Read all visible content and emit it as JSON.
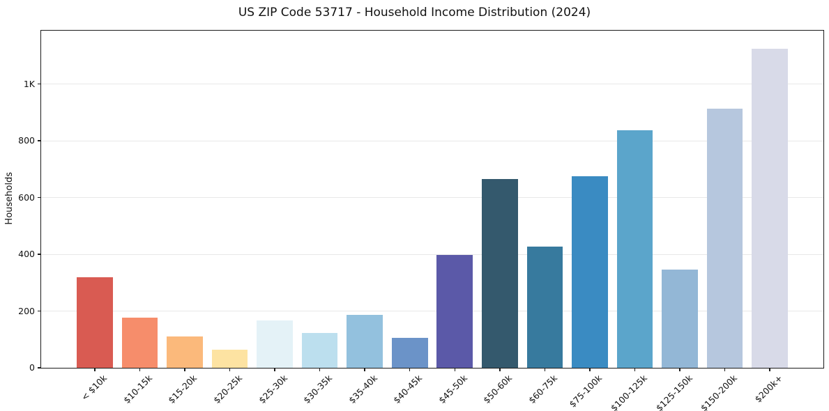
{
  "chart_data": {
    "type": "bar",
    "title": "US ZIP Code 53717 - Household Income Distribution (2024)",
    "xlabel": "",
    "ylabel": "Households",
    "categories": [
      "< $10k",
      "$10-15k",
      "$15-20k",
      "$20-25k",
      "$25-30k",
      "$30-35k",
      "$35-40k",
      "$40-45k",
      "$45-50k",
      "$50-60k",
      "$60-75k",
      "$75-100k",
      "$100-125k",
      "$125-150k",
      "$150-200k",
      "$200k+"
    ],
    "values": [
      318,
      176,
      110,
      64,
      166,
      123,
      187,
      106,
      398,
      664,
      427,
      674,
      836,
      346,
      914,
      1125
    ],
    "bar_colors": [
      "#d95b52",
      "#f68d6b",
      "#fbb97b",
      "#fde3a2",
      "#e4f2f7",
      "#bcdfee",
      "#93c1de",
      "#6b93c8",
      "#5b59a8",
      "#34596d",
      "#377a9e",
      "#3a8bc2",
      "#5ba5cb",
      "#93b7d6",
      "#b6c7de",
      "#d8dae8"
    ],
    "yticks": [
      {
        "value": 0,
        "label": "0"
      },
      {
        "value": 200,
        "label": "200"
      },
      {
        "value": 400,
        "label": "400"
      },
      {
        "value": 600,
        "label": "600"
      },
      {
        "value": 800,
        "label": "800"
      },
      {
        "value": 1000,
        "label": "1K"
      }
    ],
    "ylim": [
      0,
      1188
    ],
    "grid": "horizontal-only",
    "gridline_color": "#e8e8e8",
    "x_tick_rotation": 45,
    "legend": "none"
  }
}
